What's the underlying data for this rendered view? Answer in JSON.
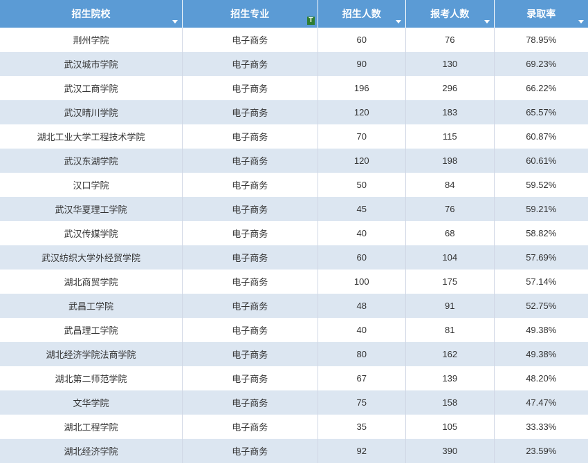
{
  "table": {
    "header_bg": "#5b9bd5",
    "header_fg": "#ffffff",
    "row_odd_bg": "#ffffff",
    "row_even_bg": "#dce6f1",
    "columns": [
      {
        "label": "招生院校",
        "filter": "dropdown"
      },
      {
        "label": "招生专业",
        "filter": "text"
      },
      {
        "label": "招生人数",
        "filter": "dropdown"
      },
      {
        "label": "报考人数",
        "filter": "dropdown"
      },
      {
        "label": "录取率",
        "filter": "dropdown"
      }
    ],
    "rows": [
      [
        "荆州学院",
        "电子商务",
        "60",
        "76",
        "78.95%"
      ],
      [
        "武汉城市学院",
        "电子商务",
        "90",
        "130",
        "69.23%"
      ],
      [
        "武汉工商学院",
        "电子商务",
        "196",
        "296",
        "66.22%"
      ],
      [
        "武汉晴川学院",
        "电子商务",
        "120",
        "183",
        "65.57%"
      ],
      [
        "湖北工业大学工程技术学院",
        "电子商务",
        "70",
        "115",
        "60.87%"
      ],
      [
        "武汉东湖学院",
        "电子商务",
        "120",
        "198",
        "60.61%"
      ],
      [
        "汉口学院",
        "电子商务",
        "50",
        "84",
        "59.52%"
      ],
      [
        "武汉华夏理工学院",
        "电子商务",
        "45",
        "76",
        "59.21%"
      ],
      [
        "武汉传媒学院",
        "电子商务",
        "40",
        "68",
        "58.82%"
      ],
      [
        "武汉纺织大学外经贸学院",
        "电子商务",
        "60",
        "104",
        "57.69%"
      ],
      [
        "湖北商贸学院",
        "电子商务",
        "100",
        "175",
        "57.14%"
      ],
      [
        "武昌工学院",
        "电子商务",
        "48",
        "91",
        "52.75%"
      ],
      [
        "武昌理工学院",
        "电子商务",
        "40",
        "81",
        "49.38%"
      ],
      [
        "湖北经济学院法商学院",
        "电子商务",
        "80",
        "162",
        "49.38%"
      ],
      [
        "湖北第二师范学院",
        "电子商务",
        "67",
        "139",
        "48.20%"
      ],
      [
        "文华学院",
        "电子商务",
        "75",
        "158",
        "47.47%"
      ],
      [
        "湖北工程学院",
        "电子商务",
        "35",
        "105",
        "33.33%"
      ],
      [
        "湖北经济学院",
        "电子商务",
        "92",
        "390",
        "23.59%"
      ]
    ]
  }
}
